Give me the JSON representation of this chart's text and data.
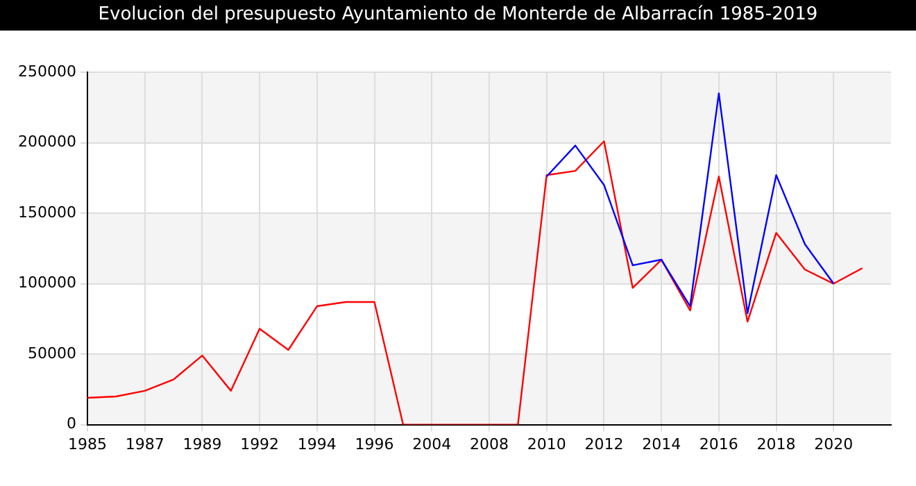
{
  "chart_data": {
    "type": "line",
    "title": "Evolucion del presupuesto Ayuntamiento de Monterde de Albarracín 1985-2019",
    "categories": [
      "1985",
      null,
      "1987",
      null,
      "1989",
      null,
      "1992",
      null,
      "1994",
      null,
      "1996",
      null,
      "2004",
      null,
      "2008",
      null,
      "2010",
      null,
      "2012",
      null,
      "2014",
      null,
      "2016",
      null,
      "2018",
      null,
      "2020",
      null,
      null
    ],
    "series": [
      {
        "color": "#0000ff",
        "values": [
          null,
          null,
          null,
          null,
          null,
          null,
          null,
          null,
          null,
          null,
          null,
          null,
          null,
          null,
          null,
          null,
          176000,
          198000,
          170000,
          113000,
          117000,
          84000,
          235000,
          79000,
          177000,
          128000,
          100000,
          null,
          null
        ]
      },
      {
        "color": "#ff0000",
        "values": [
          19000,
          20000,
          24000,
          32000,
          49000,
          24000,
          68000,
          53000,
          84000,
          87000,
          87000,
          0,
          0,
          0,
          0,
          0,
          177000,
          180000,
          201000,
          97000,
          117000,
          81000,
          176000,
          73000,
          136000,
          110000,
          100000,
          111000,
          null
        ]
      }
    ],
    "ylim": [
      0,
      250000
    ],
    "yticks": [
      0,
      50000,
      100000,
      150000,
      200000,
      250000
    ],
    "grid": true,
    "legend": false,
    "marker": "none",
    "line_style": "solid"
  }
}
